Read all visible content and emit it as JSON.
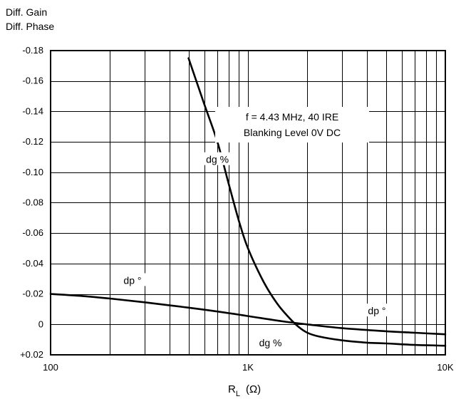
{
  "chart_data": {
    "type": "line",
    "ylabel_lines": [
      "Diff. Gain",
      "Diff. Phase"
    ],
    "xlabel_main": "R",
    "xlabel_sub": "L",
    "xlabel_unit": "(Ω)",
    "x_scale": "log",
    "xlim": [
      100,
      10000
    ],
    "ylim": [
      0.02,
      -0.18
    ],
    "x_tick_values": [
      100,
      1000,
      10000
    ],
    "x_tick_labels": [
      "100",
      "1K",
      "10K"
    ],
    "y_tick_values": [
      -0.18,
      -0.16,
      -0.14,
      -0.12,
      -0.1,
      -0.08,
      -0.06,
      -0.04,
      -0.02,
      0,
      0.02
    ],
    "y_tick_labels": [
      "-0.18",
      "-0.16",
      "-0.14",
      "-0.12",
      "-0.10",
      "-0.08",
      "-0.06",
      "-0.04",
      "-0.02",
      "0",
      "+0.02"
    ],
    "grid": true,
    "annotation_lines": [
      "f  =  4.43 MHz, 40 IRE",
      "Blanking Level 0V DC"
    ],
    "series": [
      {
        "name": "dg %",
        "x": [
          500,
          600,
          700,
          800,
          900,
          1000,
          1200,
          1400,
          1600,
          1800,
          2000,
          2300,
          3000,
          4000,
          5000,
          7000,
          10000
        ],
        "y": [
          -0.175,
          -0.145,
          -0.12,
          -0.092,
          -0.068,
          -0.05,
          -0.028,
          -0.014,
          -0.005,
          0.0015,
          0.0055,
          0.008,
          0.0105,
          0.012,
          0.0125,
          0.0135,
          0.014
        ]
      },
      {
        "name": "dp °",
        "x": [
          100,
          150,
          200,
          300,
          500,
          700,
          1000,
          1500,
          2000,
          3000,
          5000,
          7000,
          10000
        ],
        "y": [
          -0.02,
          -0.0185,
          -0.017,
          -0.0145,
          -0.011,
          -0.0085,
          -0.0055,
          -0.002,
          0.0,
          0.0025,
          0.0045,
          0.0055,
          0.0065
        ]
      }
    ],
    "series_labels": [
      {
        "text": "dg %",
        "x": 700,
        "y": -0.108
      },
      {
        "text": "dg %",
        "x": 1300,
        "y": 0.0125
      },
      {
        "text": "dp °",
        "x": 260,
        "y": -0.0285
      },
      {
        "text": "dp °",
        "x": 4500,
        "y": -0.0085
      }
    ]
  }
}
